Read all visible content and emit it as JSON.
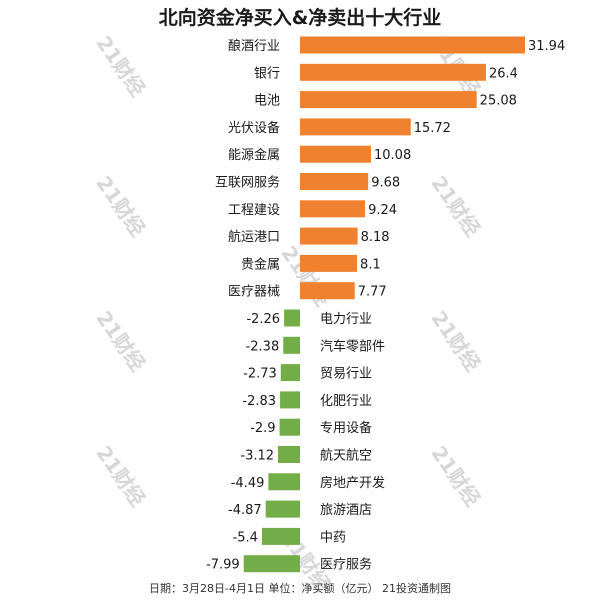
{
  "colors": {
    "positive": "#f0812e",
    "negative": "#72ad47",
    "watermark": "#d7d7d7"
  },
  "watermark_text": "21财经",
  "footer": "日期：3月28日-4月1日 单位：净买额（亿元） 21投资通制图",
  "chart_data": {
    "type": "bar",
    "orientation": "horizontal",
    "title": "北向资金净买入&净卖出十大行业",
    "xlabel": "",
    "ylabel": "",
    "unit": "亿元",
    "grid": false,
    "legend": "none",
    "categories": [
      "酿酒行业",
      "银行",
      "电池",
      "光伏设备",
      "能源金属",
      "互联网服务",
      "工程建设",
      "航运港口",
      "贵金属",
      "医疗器械",
      "电力行业",
      "汽车零部件",
      "贸易行业",
      "化肥行业",
      "专用设备",
      "航天航空",
      "房地产开发",
      "旅游酒店",
      "中药",
      "医疗服务"
    ],
    "values": [
      31.94,
      26.4,
      25.08,
      15.72,
      10.08,
      9.68,
      9.24,
      8.18,
      8.1,
      7.77,
      -2.26,
      -2.38,
      -2.73,
      -2.83,
      -2.9,
      -3.12,
      -4.49,
      -4.87,
      -5.4,
      -7.99
    ],
    "value_labels": [
      "31.94",
      "26.4",
      "25.08",
      "15.72",
      "10.08",
      "9.68",
      "9.24",
      "8.18",
      "8.1",
      "7.77",
      "-2.26",
      "-2.38",
      "-2.73",
      "-2.83",
      "-2.9",
      "-3.12",
      "-4.49",
      "-4.87",
      "-5.4",
      "-7.99"
    ]
  }
}
